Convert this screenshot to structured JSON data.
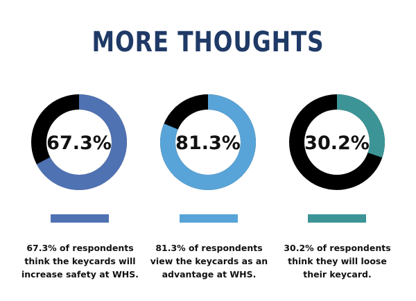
{
  "title": "MORE THOUGHTS",
  "chart_data": {
    "type": "pie",
    "donut": true,
    "items": [
      {
        "value": 67.3,
        "label": "67.3%",
        "color": "#4f72b3",
        "caption": "67.3% of respondents think the keycards will increase safety at WHS."
      },
      {
        "value": 81.3,
        "label": "81.3%",
        "color": "#58a4d8",
        "caption": "81.3% of respondents view the keycards as an advantage at WHS."
      },
      {
        "value": 30.2,
        "label": "30.2%",
        "color": "#3c9496",
        "caption": "30.2% of respondents think they will loose their keycard."
      }
    ],
    "remainder_color": "#000000"
  }
}
